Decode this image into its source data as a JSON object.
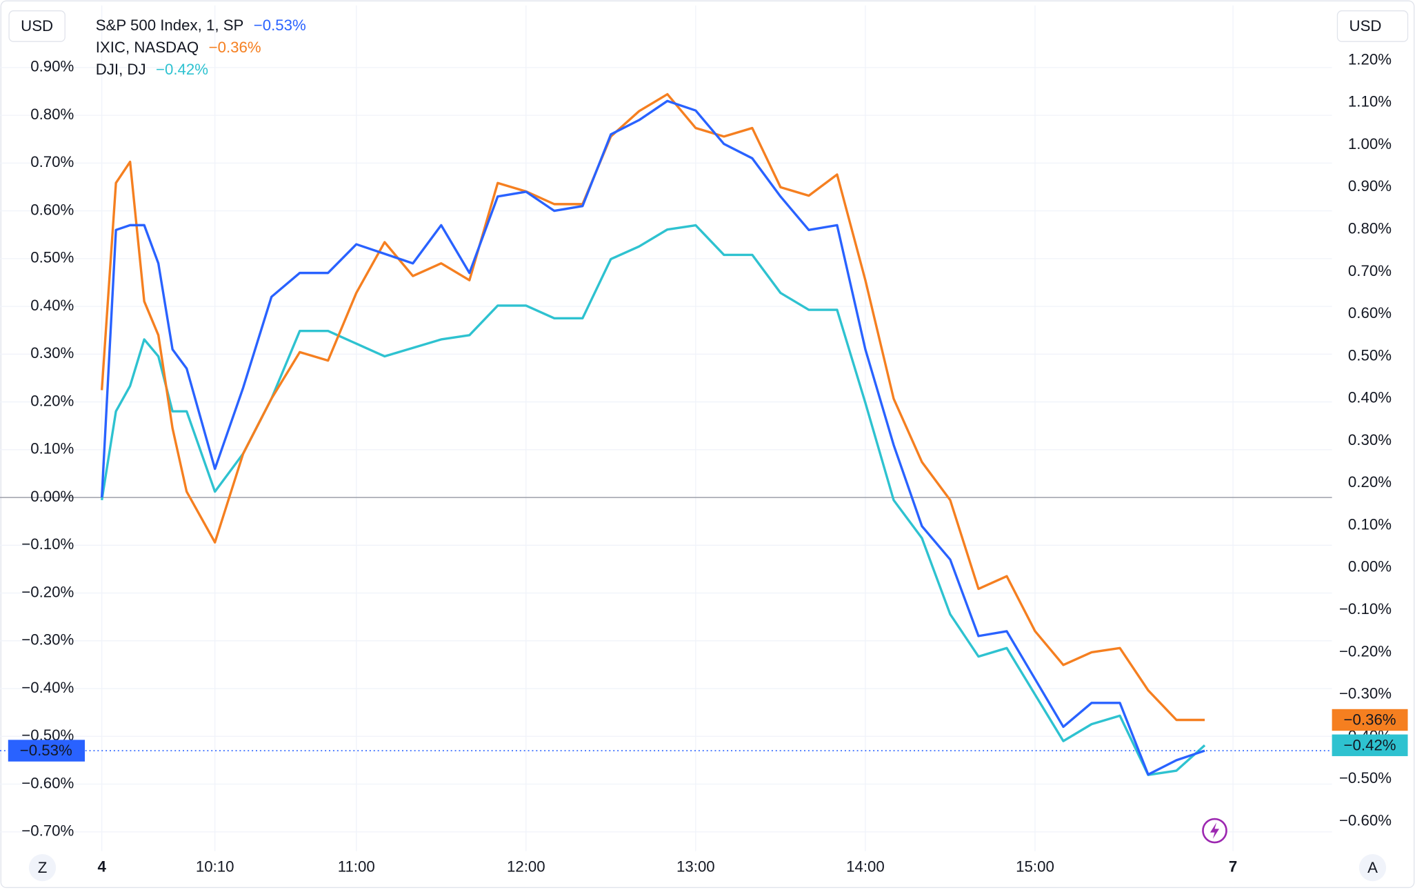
{
  "chart_data": {
    "type": "line",
    "y_unit": "USD",
    "y2_unit": "USD",
    "buttons": [
      "Z",
      "A"
    ],
    "x": [
      570,
      575,
      580,
      585,
      590,
      595,
      600,
      610,
      620,
      630,
      640,
      650,
      660,
      670,
      680,
      690,
      700,
      710,
      720,
      730,
      740,
      750,
      760,
      770,
      780,
      790,
      800,
      810,
      820,
      830,
      840,
      850,
      860,
      870,
      880,
      890,
      900,
      910,
      920,
      930,
      940,
      950,
      960
    ],
    "xlim": [
      534,
      1005
    ],
    "xticks": [
      {
        "value": 570,
        "label": "4"
      },
      {
        "value": 610,
        "label": "10:10"
      },
      {
        "value": 660,
        "label": "11:00"
      },
      {
        "value": 720,
        "label": "12:00"
      },
      {
        "value": 780,
        "label": "13:00"
      },
      {
        "value": 840,
        "label": "14:00"
      },
      {
        "value": 900,
        "label": "15:00"
      },
      {
        "value": 970,
        "label": "7"
      }
    ],
    "ylim": [
      -0.74,
      1.03
    ],
    "yticks": [
      {
        "value": 0.9,
        "label": "0.90%"
      },
      {
        "value": 0.8,
        "label": "0.80%"
      },
      {
        "value": 0.7,
        "label": "0.70%"
      },
      {
        "value": 0.6,
        "label": "0.60%"
      },
      {
        "value": 0.5,
        "label": "0.50%"
      },
      {
        "value": 0.4,
        "label": "0.40%"
      },
      {
        "value": 0.3,
        "label": "0.30%"
      },
      {
        "value": 0.2,
        "label": "0.20%"
      },
      {
        "value": 0.1,
        "label": "0.10%"
      },
      {
        "value": 0,
        "label": "0.00%"
      },
      {
        "value": -0.1,
        "label": "−0.10%"
      },
      {
        "value": -0.2,
        "label": "−0.20%"
      },
      {
        "value": -0.3,
        "label": "−0.30%"
      },
      {
        "value": -0.4,
        "label": "−0.40%"
      },
      {
        "value": -0.5,
        "label": "−0.50%"
      },
      {
        "value": -0.6,
        "label": "−0.60%"
      },
      {
        "value": -0.7,
        "label": "−0.70%"
      }
    ],
    "y2lim": [
      -0.67,
      1.33
    ],
    "y2ticks": [
      {
        "value": 1.2,
        "label": "1.20%"
      },
      {
        "value": 1.1,
        "label": "1.10%"
      },
      {
        "value": 1.0,
        "label": "1.00%"
      },
      {
        "value": 0.9,
        "label": "0.90%"
      },
      {
        "value": 0.8,
        "label": "0.80%"
      },
      {
        "value": 0.7,
        "label": "0.70%"
      },
      {
        "value": 0.6,
        "label": "0.60%"
      },
      {
        "value": 0.5,
        "label": "0.50%"
      },
      {
        "value": 0.4,
        "label": "0.40%"
      },
      {
        "value": 0.3,
        "label": "0.30%"
      },
      {
        "value": 0.2,
        "label": "0.20%"
      },
      {
        "value": 0.1,
        "label": "0.10%"
      },
      {
        "value": 0,
        "label": "0.00%"
      },
      {
        "value": -0.1,
        "label": "−0.10%"
      },
      {
        "value": -0.2,
        "label": "−0.20%"
      },
      {
        "value": -0.3,
        "label": "−0.30%"
      },
      {
        "value": -0.4,
        "label": "−0.40%"
      },
      {
        "value": -0.5,
        "label": "−0.50%"
      },
      {
        "value": -0.6,
        "label": "−0.60%"
      }
    ],
    "grid": true,
    "series": [
      {
        "name": "S&P 500 Index, 1, SP",
        "color": "#2962ff",
        "axis": "y",
        "last_label": "−0.53%",
        "values": [
          0.0,
          0.56,
          0.57,
          0.57,
          0.49,
          0.31,
          0.27,
          0.06,
          0.23,
          0.42,
          0.47,
          0.47,
          0.53,
          0.51,
          0.49,
          0.57,
          0.47,
          0.63,
          0.64,
          0.6,
          0.61,
          0.76,
          0.79,
          0.83,
          0.81,
          0.74,
          0.71,
          0.63,
          0.56,
          0.57,
          0.31,
          0.11,
          -0.06,
          -0.13,
          -0.29,
          -0.28,
          -0.38,
          -0.48,
          -0.43,
          -0.43,
          -0.58,
          -0.55,
          -0.53
        ]
      },
      {
        "name": "IXIC, NASDAQ",
        "color": "#f57f20",
        "axis": "y2",
        "last_label": "−0.36%",
        "values": [
          0.42,
          0.91,
          0.96,
          0.63,
          0.55,
          0.33,
          0.18,
          0.06,
          0.27,
          0.4,
          0.51,
          0.49,
          0.65,
          0.77,
          0.69,
          0.72,
          0.68,
          0.91,
          0.89,
          0.86,
          0.86,
          1.02,
          1.08,
          1.12,
          1.04,
          1.02,
          1.04,
          0.9,
          0.88,
          0.93,
          0.68,
          0.4,
          0.25,
          0.16,
          -0.05,
          -0.02,
          -0.15,
          -0.23,
          -0.2,
          -0.19,
          -0.29,
          -0.36,
          -0.36
        ]
      },
      {
        "name": "DJI, DJ",
        "color": "#2ec2d0",
        "axis": "y2",
        "last_label": "−0.42%",
        "values": [
          0.16,
          0.37,
          0.43,
          0.54,
          0.5,
          0.37,
          0.37,
          0.18,
          0.27,
          0.4,
          0.56,
          0.56,
          0.53,
          0.5,
          0.52,
          0.54,
          0.55,
          0.62,
          0.62,
          0.59,
          0.59,
          0.73,
          0.76,
          0.8,
          0.81,
          0.74,
          0.74,
          0.65,
          0.61,
          0.61,
          0.39,
          0.16,
          0.07,
          -0.11,
          -0.21,
          -0.19,
          -0.3,
          -0.41,
          -0.37,
          -0.35,
          -0.49,
          -0.48,
          -0.42
        ]
      }
    ]
  }
}
